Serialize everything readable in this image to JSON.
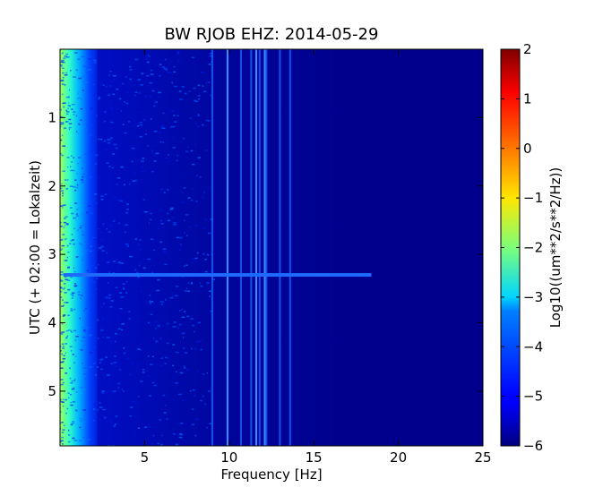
{
  "chart_data": {
    "type": "heatmap",
    "title": "BW RJOB EHZ: 2014-05-29",
    "xlabel": "Frequency [Hz]",
    "ylabel": "UTC (+ 02:00 = Lokalzeit)",
    "xlim": [
      0,
      25
    ],
    "ylim": [
      0,
      5.8
    ],
    "y_inverted": true,
    "x_ticks": [
      "5",
      "10",
      "15",
      "20",
      "25"
    ],
    "x_tick_values": [
      5,
      10,
      15,
      20,
      25
    ],
    "y_ticks": [
      "1",
      "2",
      "3",
      "4",
      "5"
    ],
    "y_tick_values": [
      1,
      2,
      3,
      4,
      5
    ],
    "colorbar": {
      "label": "Log10((um**2/s**2/Hz))",
      "range": [
        -6,
        2
      ],
      "ticks": [
        "−6",
        "−5",
        "−4",
        "−3",
        "−2",
        "−1",
        "0",
        "1",
        "2"
      ],
      "tick_values": [
        -6,
        -5,
        -4,
        -3,
        -2,
        -1,
        0,
        1,
        2
      ],
      "colormap": "jet"
    },
    "spectral_lines_hz": [
      9.0,
      9.9,
      10.7,
      11.3,
      11.8,
      12.2,
      13.0,
      13.6
    ],
    "strong_lines_hz": [
      9.9,
      11.6,
      12.1
    ],
    "horizontal_event": {
      "time": 3.3,
      "x_from": 0.2,
      "x_to": 18.4,
      "level": -4.5
    },
    "background_level": -5.9,
    "low_frequency_level": -2.4
  }
}
